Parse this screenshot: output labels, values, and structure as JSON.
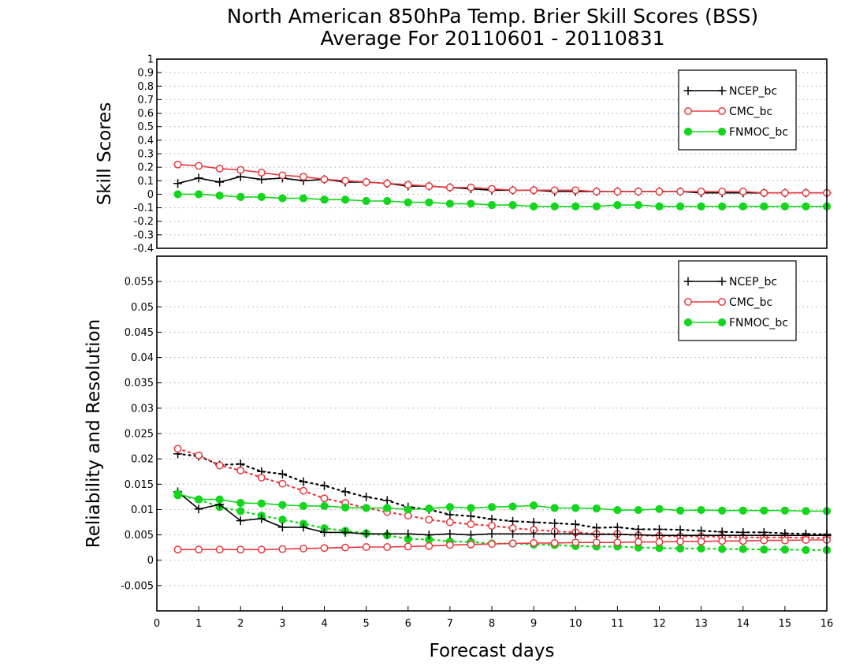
{
  "chart_data": {
    "title": "North American 850hPa Temp. Brier Skill Scores (BSS)",
    "subtitle": "Average For 20110601 - 20110831",
    "xlabel": "Forecast days",
    "xlim": [
      0,
      16
    ],
    "x_ticks": [
      "0",
      "1",
      "2",
      "3",
      "4",
      "5",
      "6",
      "7",
      "8",
      "9",
      "10",
      "11",
      "12",
      "13",
      "14",
      "15",
      "16"
    ],
    "x": [
      0.5,
      1,
      1.5,
      2,
      2.5,
      3,
      3.5,
      4,
      4.5,
      5,
      5.5,
      6,
      6.5,
      7,
      7.5,
      8,
      8.5,
      9,
      9.5,
      10,
      10.5,
      11,
      11.5,
      12,
      12.5,
      13,
      13.5,
      14,
      14.5,
      15,
      15.5,
      16
    ],
    "colors": {
      "NCEP_bc": "#000000",
      "CMC_bc": "#e8383d",
      "FNMOC_bc": "#12d61c"
    },
    "panels": [
      {
        "type": "line",
        "ylabel": "Skill Scores",
        "ylim": [
          -0.4,
          1
        ],
        "y_ticks": [
          "-0.4",
          "-0.3",
          "-0.2",
          "-0.1",
          "0",
          "0.1",
          "0.2",
          "0.3",
          "0.4",
          "0.5",
          "0.6",
          "0.7",
          "0.8",
          "0.9",
          "1"
        ],
        "grid": true,
        "legend_position": "top-right",
        "legend": [
          "NCEP_bc",
          "CMC_bc",
          "FNMOC_bc"
        ],
        "series": [
          {
            "name": "NCEP_bc",
            "color": "#000000",
            "marker": "plus",
            "dash": "solid",
            "values": [
              0.08,
              0.12,
              0.09,
              0.13,
              0.11,
              0.12,
              0.1,
              0.11,
              0.09,
              0.09,
              0.08,
              0.06,
              0.06,
              0.05,
              0.04,
              0.03,
              0.03,
              0.03,
              0.02,
              0.02,
              0.02,
              0.02,
              0.02,
              0.02,
              0.02,
              0.01,
              0.01,
              0.01,
              0.01,
              0.01,
              0.01,
              0.01
            ]
          },
          {
            "name": "CMC_bc",
            "color": "#e8383d",
            "marker": "circle-open",
            "dash": "solid",
            "values": [
              0.22,
              0.21,
              0.19,
              0.18,
              0.16,
              0.14,
              0.13,
              0.11,
              0.1,
              0.09,
              0.08,
              0.07,
              0.06,
              0.05,
              0.05,
              0.04,
              0.03,
              0.03,
              0.03,
              0.03,
              0.02,
              0.02,
              0.02,
              0.02,
              0.02,
              0.02,
              0.02,
              0.02,
              0.01,
              0.01,
              0.01,
              0.01
            ]
          },
          {
            "name": "FNMOC_bc",
            "color": "#12d61c",
            "marker": "circle-filled",
            "dash": "solid",
            "values": [
              0.0,
              0.0,
              -0.01,
              -0.02,
              -0.02,
              -0.03,
              -0.03,
              -0.04,
              -0.04,
              -0.05,
              -0.05,
              -0.06,
              -0.06,
              -0.07,
              -0.07,
              -0.08,
              -0.08,
              -0.09,
              -0.09,
              -0.09,
              -0.09,
              -0.08,
              -0.08,
              -0.09,
              -0.09,
              -0.09,
              -0.09,
              -0.09,
              -0.09,
              -0.09,
              -0.09,
              -0.09
            ]
          }
        ]
      },
      {
        "type": "line",
        "ylabel": "Reliability and Resolution",
        "ylim": [
          -0.01,
          0.06
        ],
        "y_ticks": [
          "-0.005",
          "0",
          "0.005",
          "0.01",
          "0.015",
          "0.02",
          "0.025",
          "0.03",
          "0.035",
          "0.04",
          "0.045",
          "0.05",
          "0.055"
        ],
        "grid": true,
        "legend_position": "top-right",
        "legend": [
          "NCEP_bc",
          "CMC_bc",
          "FNMOC_bc"
        ],
        "series": [
          {
            "name": "NCEP_bc",
            "color": "#000000",
            "marker": "plus",
            "dash": "dotted",
            "values": [
              0.021,
              0.0205,
              0.0188,
              0.019,
              0.0175,
              0.017,
              0.0155,
              0.0147,
              0.0135,
              0.0125,
              0.0118,
              0.0105,
              0.01,
              0.009,
              0.0087,
              0.0081,
              0.0077,
              0.0075,
              0.0073,
              0.0071,
              0.0064,
              0.0065,
              0.0061,
              0.0061,
              0.006,
              0.0058,
              0.0056,
              0.0055,
              0.0055,
              0.0053,
              0.0052,
              0.0051
            ]
          },
          {
            "name": "CMC_bc",
            "color": "#e8383d",
            "marker": "circle-open",
            "dash": "dotted",
            "values": [
              0.022,
              0.0207,
              0.0187,
              0.0177,
              0.0163,
              0.0151,
              0.0137,
              0.0122,
              0.0113,
              0.0103,
              0.0095,
              0.0088,
              0.008,
              0.0075,
              0.0071,
              0.0068,
              0.0063,
              0.006,
              0.0057,
              0.0055,
              0.0052,
              0.0052,
              0.0049,
              0.0048,
              0.0047,
              0.0047,
              0.0046,
              0.0045,
              0.0045,
              0.0045,
              0.0044,
              0.0044
            ]
          },
          {
            "name": "FNMOC_bc",
            "color": "#12d61c",
            "marker": "circle-filled",
            "dash": "dotted",
            "values": [
              0.0128,
              0.012,
              0.0105,
              0.0097,
              0.0088,
              0.008,
              0.0072,
              0.0063,
              0.0058,
              0.0053,
              0.0049,
              0.0042,
              0.0041,
              0.0037,
              0.0036,
              0.0033,
              0.0033,
              0.0031,
              0.003,
              0.0028,
              0.0027,
              0.0027,
              0.0025,
              0.0024,
              0.0023,
              0.0023,
              0.0022,
              0.0022,
              0.0021,
              0.0021,
              0.002,
              0.002
            ]
          },
          {
            "name": "NCEP_bc",
            "color": "#000000",
            "marker": "plus",
            "dash": "solid",
            "values": [
              0.0135,
              0.0101,
              0.011,
              0.0078,
              0.0082,
              0.0065,
              0.0065,
              0.0055,
              0.0055,
              0.0052,
              0.0052,
              0.0052,
              0.005,
              0.0052,
              0.005,
              0.0052,
              0.0052,
              0.0052,
              0.0052,
              0.0052,
              0.0051,
              0.0051,
              0.005,
              0.0049,
              0.0049,
              0.0049,
              0.0049,
              0.0049,
              0.0049,
              0.0049,
              0.0049,
              0.0049
            ]
          },
          {
            "name": "CMC_bc",
            "color": "#e8383d",
            "marker": "circle-open",
            "dash": "solid",
            "values": [
              0.0021,
              0.0021,
              0.0021,
              0.0021,
              0.0021,
              0.0022,
              0.0023,
              0.0024,
              0.0025,
              0.0026,
              0.0026,
              0.0027,
              0.0028,
              0.003,
              0.0031,
              0.0032,
              0.0033,
              0.0034,
              0.0034,
              0.0035,
              0.0035,
              0.0035,
              0.0036,
              0.0036,
              0.0037,
              0.0037,
              0.0038,
              0.0038,
              0.0039,
              0.0039,
              0.004,
              0.004
            ]
          },
          {
            "name": "FNMOC_bc",
            "color": "#12d61c",
            "marker": "circle-filled",
            "dash": "solid",
            "values": [
              0.0131,
              0.012,
              0.012,
              0.0113,
              0.0112,
              0.0109,
              0.0107,
              0.0107,
              0.0104,
              0.0103,
              0.0103,
              0.01,
              0.0102,
              0.0105,
              0.0103,
              0.0105,
              0.0106,
              0.0108,
              0.0103,
              0.0103,
              0.0102,
              0.0099,
              0.0099,
              0.0101,
              0.0098,
              0.0099,
              0.0098,
              0.0098,
              0.0098,
              0.0098,
              0.0097,
              0.0097
            ]
          }
        ]
      }
    ]
  }
}
